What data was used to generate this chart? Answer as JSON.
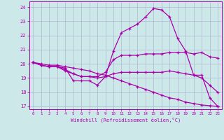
{
  "background_color": "#cde8e8",
  "line_color": "#aa00aa",
  "grid_color": "#aaaacc",
  "hours": [
    0,
    1,
    2,
    3,
    4,
    5,
    6,
    7,
    8,
    9,
    10,
    11,
    12,
    13,
    14,
    15,
    16,
    17,
    18,
    19,
    20,
    21,
    22,
    23
  ],
  "lines": [
    [
      20.1,
      19.9,
      19.8,
      19.8,
      19.7,
      18.8,
      18.8,
      18.8,
      18.5,
      19.1,
      20.9,
      22.2,
      22.5,
      22.8,
      23.3,
      23.9,
      23.8,
      23.3,
      21.8,
      20.9,
      19.2,
      19.2,
      17.6,
      17.0
    ],
    [
      20.1,
      19.9,
      19.8,
      19.8,
      19.5,
      19.3,
      19.1,
      19.1,
      19.1,
      19.4,
      20.3,
      20.6,
      20.6,
      20.6,
      20.7,
      20.7,
      20.7,
      20.8,
      20.8,
      20.8,
      20.7,
      20.8,
      20.5,
      20.4
    ],
    [
      20.1,
      19.9,
      19.8,
      19.8,
      19.6,
      19.3,
      19.1,
      19.1,
      19.0,
      19.1,
      19.3,
      19.4,
      19.4,
      19.4,
      19.4,
      19.4,
      19.4,
      19.5,
      19.4,
      19.3,
      19.2,
      19.0,
      18.5,
      18.0
    ],
    [
      20.1,
      20.0,
      19.9,
      19.9,
      19.8,
      19.7,
      19.6,
      19.5,
      19.3,
      19.2,
      19.0,
      18.8,
      18.6,
      18.4,
      18.2,
      18.0,
      17.8,
      17.6,
      17.5,
      17.3,
      17.2,
      17.1,
      17.05,
      17.0
    ]
  ],
  "ylim": [
    16.8,
    24.4
  ],
  "xlim": [
    -0.5,
    23.5
  ],
  "yticks": [
    17,
    18,
    19,
    20,
    21,
    22,
    23,
    24
  ],
  "xticks": [
    0,
    1,
    2,
    3,
    4,
    5,
    6,
    7,
    8,
    9,
    10,
    11,
    12,
    13,
    14,
    15,
    16,
    17,
    18,
    19,
    20,
    21,
    22,
    23
  ],
  "xlabel": "Windchill (Refroidissement éolien,°C)"
}
